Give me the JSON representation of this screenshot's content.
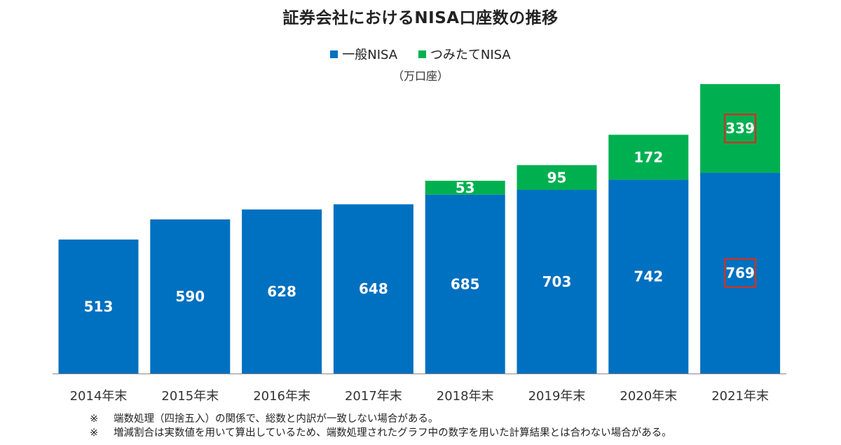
{
  "chart_data": {
    "type": "bar",
    "stacked": true,
    "title": "証券会社におけるNISA口座数の推移",
    "unit_label": "（万口座）",
    "categories": [
      "2014年末",
      "2015年末",
      "2016年末",
      "2017年末",
      "2018年末",
      "2019年末",
      "2020年末",
      "2021年末"
    ],
    "series": [
      {
        "name": "一般NISA",
        "color": "#0070c0",
        "values": [
          513,
          590,
          628,
          648,
          685,
          703,
          742,
          769
        ]
      },
      {
        "name": "つみたてNISA",
        "color": "#00b050",
        "values": [
          null,
          null,
          null,
          null,
          53,
          95,
          172,
          339
        ]
      }
    ],
    "highlighted_labels": [
      {
        "series": "一般NISA",
        "category": "2021年末",
        "border_color": "#c0392b"
      },
      {
        "series": "つみたてNISA",
        "category": "2021年末",
        "border_color": "#c0392b"
      }
    ],
    "ylim": [
      0,
      1150
    ],
    "grid": false,
    "legend_position": "top-center",
    "notes": [
      {
        "mark": "※",
        "text": "端数処理（四捨五入）の関係で、総数と内訳が一致しない場合がある。"
      },
      {
        "mark": "※",
        "text": "増減割合は実数値を用いて算出しているため、端数処理されたグラフ中の数字を用いた計算結果とは合わない場合がある。"
      }
    ]
  }
}
